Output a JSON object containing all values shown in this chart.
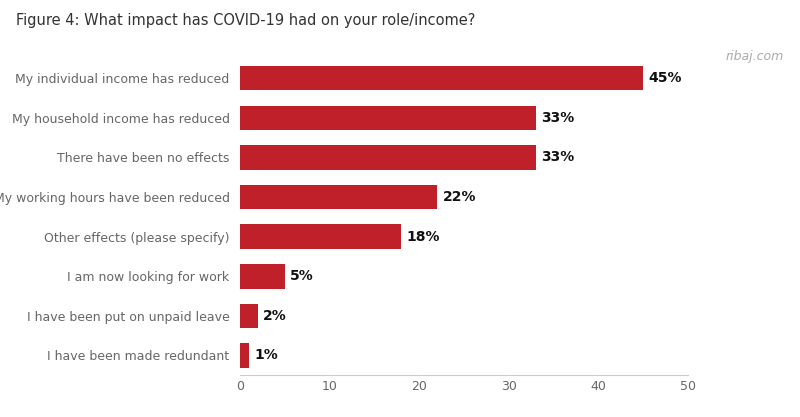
{
  "title": "Figure 4: What impact has COVID-19 had on your role/income?",
  "watermark": "ribaj.com",
  "categories": [
    "My individual income has reduced",
    "My household income has reduced",
    "There have been no effects",
    "My working hours have been reduced",
    "Other effects (please specify)",
    "I am now looking for work",
    "I have been put on unpaid leave",
    "I have been made redundant"
  ],
  "values": [
    45,
    33,
    33,
    22,
    18,
    5,
    2,
    1
  ],
  "labels": [
    "45%",
    "33%",
    "33%",
    "22%",
    "18%",
    "5%",
    "2%",
    "1%"
  ],
  "bar_color": "#c0202a",
  "background_color": "#ffffff",
  "text_color": "#666666",
  "title_color": "#333333",
  "label_color": "#111111",
  "xlim": [
    0,
    50
  ],
  "xticks": [
    0,
    10,
    20,
    30,
    40,
    50
  ],
  "bar_height": 0.62,
  "title_fontsize": 10.5,
  "label_fontsize": 10,
  "tick_fontsize": 9,
  "watermark_fontsize": 9,
  "category_fontsize": 9
}
